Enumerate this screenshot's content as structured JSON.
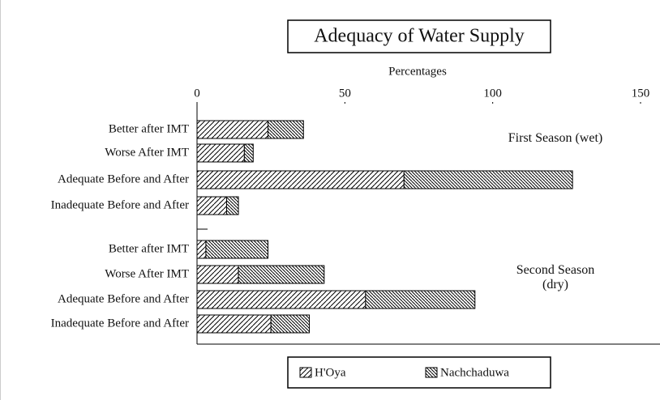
{
  "chart_data": {
    "type": "stacked-hbar",
    "title": "Adequacy of Water Supply",
    "x_label": "Percentages",
    "categories": [
      "Better after IMT",
      "Worse After IMT",
      "Adequate Before and After",
      "Inadequate Before and After",
      "Better after IMT",
      "Worse After IMT",
      "Adequate Before and After",
      "Inadequate Before and After"
    ],
    "group_labels": [
      "First Season (wet)",
      "Second Season (dry)"
    ],
    "series": [
      {
        "name": "H'Oya",
        "color": "#000000",
        "values": [
          24,
          16,
          70,
          10,
          3,
          14,
          57,
          25
        ]
      },
      {
        "name": "Nachchaduwa",
        "color": "#000000",
        "values": [
          12,
          3,
          57,
          4,
          21,
          29,
          37,
          13
        ]
      }
    ],
    "xlim": [
      0,
      150
    ],
    "xticks": [
      0,
      50,
      100,
      150
    ]
  }
}
